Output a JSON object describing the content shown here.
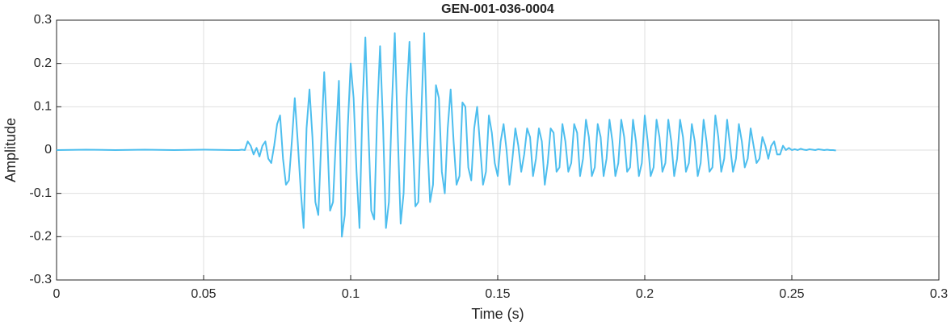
{
  "chart_data": {
    "type": "line",
    "title": "GEN-001-036-0004",
    "xlabel": "Time (s)",
    "ylabel": "Amplitude",
    "xlim": [
      0,
      0.3
    ],
    "xticks": [
      0,
      0.05,
      0.1,
      0.15,
      0.2,
      0.25,
      0.3
    ],
    "ylim": [
      -0.3,
      0.3
    ],
    "yticks": [
      -0.3,
      -0.2,
      -0.1,
      0,
      0.1,
      0.2,
      0.3
    ],
    "grid": true,
    "series": [
      {
        "color": "#4dbeee",
        "x": [
          0,
          0.01,
          0.02,
          0.03,
          0.04,
          0.05,
          0.06,
          0.061,
          0.062,
          0.063,
          0.064,
          0.065,
          0.066,
          0.067,
          0.068,
          0.069,
          0.07,
          0.071,
          0.072,
          0.073,
          0.074,
          0.075,
          0.076,
          0.077,
          0.078,
          0.079,
          0.08,
          0.081,
          0.082,
          0.083,
          0.084,
          0.085,
          0.086,
          0.087,
          0.088,
          0.089,
          0.09,
          0.091,
          0.092,
          0.093,
          0.094,
          0.095,
          0.096,
          0.097,
          0.098,
          0.099,
          0.1,
          0.101,
          0.102,
          0.103,
          0.104,
          0.105,
          0.106,
          0.107,
          0.108,
          0.109,
          0.11,
          0.111,
          0.112,
          0.113,
          0.114,
          0.115,
          0.116,
          0.117,
          0.118,
          0.119,
          0.12,
          0.121,
          0.122,
          0.123,
          0.124,
          0.125,
          0.126,
          0.127,
          0.128,
          0.129,
          0.13,
          0.131,
          0.132,
          0.133,
          0.134,
          0.135,
          0.136,
          0.137,
          0.138,
          0.139,
          0.14,
          0.141,
          0.142,
          0.143,
          0.144,
          0.145,
          0.146,
          0.147,
          0.148,
          0.149,
          0.15,
          0.151,
          0.152,
          0.153,
          0.154,
          0.155,
          0.156,
          0.157,
          0.158,
          0.159,
          0.16,
          0.161,
          0.162,
          0.163,
          0.164,
          0.165,
          0.166,
          0.167,
          0.168,
          0.169,
          0.17,
          0.171,
          0.172,
          0.173,
          0.174,
          0.175,
          0.176,
          0.177,
          0.178,
          0.179,
          0.18,
          0.181,
          0.182,
          0.183,
          0.184,
          0.185,
          0.186,
          0.187,
          0.188,
          0.189,
          0.19,
          0.191,
          0.192,
          0.193,
          0.194,
          0.195,
          0.196,
          0.197,
          0.198,
          0.199,
          0.2,
          0.201,
          0.202,
          0.203,
          0.204,
          0.205,
          0.206,
          0.207,
          0.208,
          0.209,
          0.21,
          0.211,
          0.212,
          0.213,
          0.214,
          0.215,
          0.216,
          0.217,
          0.218,
          0.219,
          0.22,
          0.221,
          0.222,
          0.223,
          0.224,
          0.225,
          0.226,
          0.227,
          0.228,
          0.229,
          0.23,
          0.231,
          0.232,
          0.233,
          0.234,
          0.235,
          0.236,
          0.237,
          0.238,
          0.239,
          0.24,
          0.241,
          0.242,
          0.243,
          0.244,
          0.245,
          0.246,
          0.247,
          0.248,
          0.249,
          0.25,
          0.251,
          0.252,
          0.253,
          0.254,
          0.255,
          0.256,
          0.257,
          0.258,
          0.259,
          0.26,
          0.261,
          0.262,
          0.263,
          0.264,
          0.265
        ],
        "values": [
          0,
          0.001,
          0,
          0.001,
          0,
          0.001,
          0,
          0,
          0,
          0.001,
          0,
          0.02,
          0.01,
          -0.01,
          0.005,
          -0.015,
          0.01,
          0.02,
          -0.02,
          -0.03,
          0.01,
          0.06,
          0.08,
          -0.02,
          -0.08,
          -0.07,
          0.02,
          0.12,
          0.02,
          -0.09,
          -0.18,
          0.05,
          0.14,
          0.03,
          -0.12,
          -0.15,
          0.02,
          0.18,
          0.04,
          -0.14,
          -0.12,
          0.03,
          0.16,
          -0.2,
          -0.15,
          0.05,
          0.2,
          0.12,
          -0.05,
          -0.18,
          0.1,
          0.26,
          0.05,
          -0.14,
          -0.16,
          0.08,
          0.24,
          0.06,
          -0.18,
          -0.12,
          0.1,
          0.27,
          0.04,
          -0.17,
          -0.1,
          0.12,
          0.25,
          0.05,
          -0.13,
          -0.12,
          0.08,
          0.27,
          0.03,
          -0.12,
          -0.08,
          0.15,
          0.12,
          -0.05,
          -0.1,
          0.05,
          0.14,
          0.02,
          -0.08,
          -0.06,
          0.11,
          0.1,
          -0.04,
          -0.07,
          0.05,
          0.1,
          0.01,
          -0.08,
          -0.05,
          0.08,
          0.04,
          -0.03,
          -0.06,
          0.02,
          0.06,
          0,
          -0.08,
          -0.02,
          0.05,
          0.01,
          -0.05,
          -0.01,
          0.05,
          0.03,
          -0.06,
          -0.02,
          0.05,
          0.02,
          -0.08,
          -0.03,
          0.05,
          0.04,
          -0.05,
          -0.04,
          0.06,
          0.02,
          -0.05,
          -0.03,
          0.06,
          0.04,
          -0.06,
          -0.02,
          0.07,
          0.03,
          -0.06,
          -0.04,
          0.06,
          0.03,
          -0.06,
          -0.02,
          0.07,
          0.02,
          -0.06,
          -0.03,
          0.07,
          0.03,
          -0.05,
          -0.04,
          0.07,
          0.02,
          -0.06,
          -0.03,
          0.08,
          0.02,
          -0.06,
          -0.04,
          0.07,
          0.03,
          -0.05,
          -0.03,
          0.07,
          0.02,
          -0.06,
          -0.02,
          0.07,
          0.03,
          -0.05,
          -0.03,
          0.06,
          0.02,
          -0.06,
          -0.03,
          0.07,
          0.02,
          -0.05,
          -0.04,
          0.08,
          0.03,
          -0.05,
          -0.02,
          0.07,
          0.01,
          -0.05,
          -0.02,
          0.06,
          0.02,
          -0.04,
          -0.02,
          0.05,
          0.01,
          -0.03,
          -0.02,
          0.03,
          0.01,
          -0.02,
          0.01,
          0.02,
          -0.01,
          -0.01,
          0.01,
          0,
          0.005,
          0,
          0.002,
          0,
          0.003,
          0.001,
          0,
          0.002,
          0.001,
          0,
          0.002,
          0.001,
          0,
          0.001,
          0,
          0,
          -0.001
        ]
      }
    ]
  }
}
